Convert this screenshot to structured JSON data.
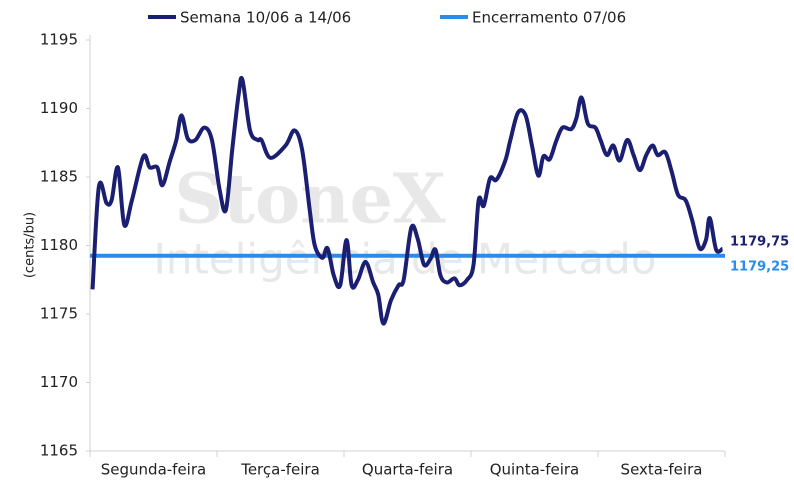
{
  "chart_data": {
    "type": "line",
    "y_label": "(cents/bu)",
    "watermark": {
      "brand": "StoneX",
      "tagline": "Inteligência de Mercado"
    },
    "categories": [
      "Segunda-feira",
      "Terça-feira",
      "Quarta-feira",
      "Quinta-feira",
      "Sexta-feira"
    ],
    "xlim": [
      0,
      5
    ],
    "ylim": [
      1165,
      1195
    ],
    "yticks": [
      1165,
      1170,
      1175,
      1180,
      1185,
      1190,
      1195
    ],
    "grid": false,
    "legend": "top",
    "x": [
      0.02,
      0.07,
      0.13,
      0.17,
      0.22,
      0.27,
      0.33,
      0.42,
      0.47,
      0.53,
      0.57,
      0.63,
      0.68,
      0.72,
      0.77,
      0.83,
      0.9,
      0.96,
      1.02,
      1.07,
      1.12,
      1.17,
      1.2,
      1.26,
      1.32,
      1.35,
      1.42,
      1.54,
      1.61,
      1.67,
      1.73,
      1.77,
      1.83,
      1.87,
      1.92,
      1.97,
      2.02,
      2.06,
      2.11,
      2.17,
      2.23,
      2.27,
      2.31,
      2.37,
      2.43,
      2.47,
      2.53,
      2.58,
      2.63,
      2.68,
      2.72,
      2.76,
      2.81,
      2.87,
      2.91,
      2.97,
      3.02,
      3.06,
      3.1,
      3.15,
      3.2,
      3.27,
      3.31,
      3.37,
      3.43,
      3.48,
      3.53,
      3.57,
      3.62,
      3.67,
      3.72,
      3.79,
      3.83,
      3.87,
      3.92,
      3.98,
      4.02,
      4.07,
      4.12,
      4.17,
      4.23,
      4.28,
      4.33,
      4.38,
      4.43,
      4.47,
      4.53,
      4.58,
      4.63,
      4.69,
      4.74,
      4.8,
      4.85,
      4.88,
      4.93,
      4.98
    ],
    "series": [
      {
        "name": "Semana 10/06 a 14/06",
        "color": "#1b1f72",
        "values": [
          1176.8,
          1184.3,
          1183.1,
          1183.3,
          1185.7,
          1181.5,
          1183.3,
          1186.5,
          1185.7,
          1185.7,
          1184.4,
          1186.2,
          1187.7,
          1189.5,
          1187.8,
          1187.7,
          1188.6,
          1187.7,
          1184.1,
          1182.6,
          1187,
          1191,
          1192.1,
          1188.4,
          1187.7,
          1187.7,
          1186.4,
          1187.3,
          1188.4,
          1187,
          1182.6,
          1180,
          1179.1,
          1179.8,
          1177.8,
          1177.1,
          1180.4,
          1177.1,
          1177.5,
          1178.8,
          1177.3,
          1176.4,
          1174.3,
          1176,
          1177.1,
          1177.5,
          1181.3,
          1180.5,
          1178.6,
          1179,
          1179.7,
          1177.8,
          1177.3,
          1177.6,
          1177.1,
          1177.5,
          1178.6,
          1183.3,
          1182.9,
          1184.9,
          1184.8,
          1186.2,
          1187.7,
          1189.7,
          1189.5,
          1187.3,
          1185.1,
          1186.5,
          1186.3,
          1187.6,
          1188.6,
          1188.5,
          1189.3,
          1190.8,
          1188.9,
          1188.6,
          1187.7,
          1186.6,
          1187.3,
          1186.2,
          1187.7,
          1186.6,
          1185.5,
          1186.6,
          1187.3,
          1186.6,
          1186.8,
          1185.4,
          1183.7,
          1183.3,
          1181.9,
          1179.8,
          1180.4,
          1182,
          1179.7,
          1179.75
        ],
        "end_label": "1179,75"
      }
    ],
    "reference": {
      "name": "Encerramento 07/06",
      "color": "#2b8be8",
      "value": 1179.25,
      "label": "1179,25"
    }
  }
}
